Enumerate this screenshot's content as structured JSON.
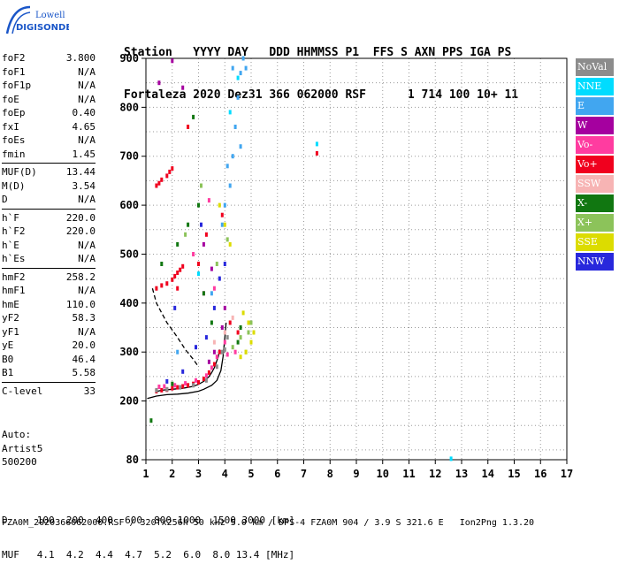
{
  "logo": {
    "line1": "Lowell",
    "line2": "DIGISONDE",
    "accent": "#1a56c8"
  },
  "header": {
    "labels": "Station   YYYY DAY   DDD HHMMSS P1  FFS S AXN PPS IGA PS",
    "values": "Fortaleza 2020 Dez31 366 062000 RSF      1 714 100 10+ 11"
  },
  "params": [
    [
      {
        "name": "foF2",
        "value": "3.800"
      },
      {
        "name": "foF1",
        "value": "N/A"
      },
      {
        "name": "foF1p",
        "value": "N/A"
      },
      {
        "name": "foE",
        "value": "N/A"
      },
      {
        "name": "foEp",
        "value": "0.40"
      },
      {
        "name": "fxI",
        "value": "4.65"
      },
      {
        "name": "foEs",
        "value": "N/A"
      },
      {
        "name": "fmin",
        "value": "1.45"
      }
    ],
    [
      {
        "name": "MUF(D)",
        "value": "13.44"
      },
      {
        "name": "M(D)",
        "value": "3.54"
      },
      {
        "name": "D",
        "value": "N/A"
      }
    ],
    [
      {
        "name": "h`F",
        "value": "220.0"
      },
      {
        "name": "h`F2",
        "value": "220.0"
      },
      {
        "name": "h`E",
        "value": "N/A"
      },
      {
        "name": "h`Es",
        "value": "N/A"
      }
    ],
    [
      {
        "name": "hmF2",
        "value": "258.2"
      },
      {
        "name": "hmF1",
        "value": "N/A"
      },
      {
        "name": "hmE",
        "value": "110.0"
      },
      {
        "name": "yF2",
        "value": "58.3"
      },
      {
        "name": "yF1",
        "value": "N/A"
      },
      {
        "name": "yE",
        "value": "20.0"
      },
      {
        "name": "B0",
        "value": "46.4"
      },
      {
        "name": "B1",
        "value": "5.58"
      }
    ],
    [
      {
        "name": "C-level",
        "value": "33"
      }
    ]
  ],
  "auto": {
    "line1": "Auto:",
    "line2": "Artist5",
    "line3": "500200"
  },
  "legend": [
    {
      "label": "NoVal",
      "color": "#8c8c8c"
    },
    {
      "label": "NNE",
      "color": "#00dcff"
    },
    {
      "label": "E",
      "color": "#41a6f0"
    },
    {
      "label": "W",
      "color": "#a5009f"
    },
    {
      "label": "Vo-",
      "color": "#ff3ca0"
    },
    {
      "label": "Vo+",
      "color": "#f0001e"
    },
    {
      "label": "SSW",
      "color": "#f7b4b4"
    },
    {
      "label": "X-",
      "color": "#117711"
    },
    {
      "label": "X+",
      "color": "#8cc35a"
    },
    {
      "label": "SSE",
      "color": "#dcdc00"
    },
    {
      "label": "NNW",
      "color": "#2828dc"
    }
  ],
  "footer": {
    "line1": "D     100  200  400  600  800 1000  1500 3000 [km]",
    "line2": "MUF   4.1  4.2  4.4  4.7  5.2  6.0  8.0 13.4 [MHz]",
    "file": "FZA0M_2020366062000.RSF / 320fx256h 50 kHz 5.0 km / DPS-4 FZA0M 904 / 3.9 S 321.6 E   Ion2Png 1.3.20"
  },
  "chart_data": {
    "type": "scatter",
    "title": "",
    "xlabel": "",
    "ylabel": "",
    "xlim": [
      1,
      17
    ],
    "ylim": [
      80,
      900
    ],
    "x_ticks": [
      1,
      2,
      3,
      4,
      5,
      6,
      7,
      8,
      9,
      10,
      11,
      12,
      13,
      14,
      15,
      16,
      17
    ],
    "y_ticks": [
      80,
      200,
      300,
      400,
      500,
      600,
      700,
      800,
      900
    ],
    "grid": "dotted",
    "legend_position": "right",
    "series": [
      {
        "name": "Vo+",
        "color": "#f0001e",
        "points": [
          [
            1.4,
            220
          ],
          [
            1.6,
            222
          ],
          [
            1.8,
            223
          ],
          [
            2.0,
            226
          ],
          [
            2.2,
            228
          ],
          [
            2.4,
            230
          ],
          [
            2.6,
            232
          ],
          [
            2.8,
            235
          ],
          [
            3.0,
            238
          ],
          [
            3.2,
            245
          ],
          [
            3.4,
            258
          ],
          [
            3.6,
            275
          ],
          [
            3.8,
            300
          ],
          [
            1.4,
            430
          ],
          [
            1.6,
            436
          ],
          [
            1.8,
            440
          ],
          [
            2.0,
            448
          ],
          [
            2.1,
            455
          ],
          [
            2.2,
            462
          ],
          [
            2.3,
            468
          ],
          [
            2.4,
            475
          ],
          [
            2.2,
            430
          ],
          [
            1.4,
            640
          ],
          [
            1.5,
            645
          ],
          [
            1.6,
            652
          ],
          [
            1.8,
            660
          ],
          [
            1.9,
            668
          ],
          [
            2.0,
            675
          ],
          [
            3.0,
            480
          ],
          [
            3.3,
            540
          ],
          [
            3.9,
            580
          ],
          [
            4.2,
            360
          ],
          [
            4.5,
            340
          ],
          [
            7.5,
            706
          ],
          [
            2.6,
            760
          ]
        ]
      },
      {
        "name": "Vo-",
        "color": "#ff3ca0",
        "points": [
          [
            1.5,
            229
          ],
          [
            1.7,
            230
          ],
          [
            2.1,
            232
          ],
          [
            2.5,
            236
          ],
          [
            2.9,
            242
          ],
          [
            3.3,
            252
          ],
          [
            3.5,
            268
          ],
          [
            3.7,
            290
          ],
          [
            4.0,
            320
          ],
          [
            3.2,
            420
          ],
          [
            3.6,
            430
          ],
          [
            2.8,
            500
          ],
          [
            3.4,
            610
          ],
          [
            4.1,
            295
          ],
          [
            4.4,
            300
          ]
        ]
      },
      {
        "name": "E",
        "color": "#41a6f0",
        "points": [
          [
            4.0,
            600
          ],
          [
            4.2,
            640
          ],
          [
            4.3,
            700
          ],
          [
            4.4,
            760
          ],
          [
            4.5,
            820
          ],
          [
            4.6,
            870
          ],
          [
            4.7,
            900
          ],
          [
            4.1,
            680
          ],
          [
            3.9,
            560
          ],
          [
            4.8,
            880
          ],
          [
            3.5,
            420
          ],
          [
            2.2,
            300
          ],
          [
            4.3,
            880
          ],
          [
            4.6,
            720
          ]
        ]
      },
      {
        "name": "NNE",
        "color": "#00dcff",
        "points": [
          [
            7.5,
            725
          ],
          [
            12.6,
            82
          ],
          [
            4.2,
            790
          ],
          [
            4.5,
            860
          ],
          [
            3.0,
            460
          ]
        ]
      },
      {
        "name": "W",
        "color": "#a5009f",
        "points": [
          [
            2.0,
            895
          ],
          [
            1.5,
            850
          ],
          [
            3.4,
            280
          ],
          [
            3.6,
            300
          ],
          [
            3.9,
            350
          ],
          [
            4.0,
            390
          ],
          [
            3.2,
            520
          ],
          [
            3.5,
            470
          ],
          [
            2.4,
            840
          ]
        ]
      },
      {
        "name": "X-",
        "color": "#117711",
        "points": [
          [
            1.2,
            160
          ],
          [
            1.6,
            480
          ],
          [
            2.2,
            520
          ],
          [
            2.6,
            560
          ],
          [
            3.0,
            600
          ],
          [
            3.2,
            420
          ],
          [
            3.5,
            360
          ],
          [
            4.5,
            320
          ],
          [
            4.6,
            350
          ],
          [
            2.8,
            780
          ],
          [
            2.0,
            235
          ]
        ]
      },
      {
        "name": "X+",
        "color": "#8cc35a",
        "points": [
          [
            4.3,
            310
          ],
          [
            4.6,
            330
          ],
          [
            4.8,
            300
          ],
          [
            4.9,
            340
          ],
          [
            5.0,
            360
          ],
          [
            3.7,
            480
          ],
          [
            4.1,
            530
          ],
          [
            2.5,
            540
          ],
          [
            3.1,
            640
          ]
        ]
      },
      {
        "name": "SSE",
        "color": "#dcdc00",
        "points": [
          [
            4.6,
            290
          ],
          [
            4.8,
            300
          ],
          [
            5.0,
            320
          ],
          [
            5.1,
            340
          ],
          [
            4.9,
            360
          ],
          [
            4.2,
            520
          ],
          [
            4.0,
            560
          ],
          [
            3.8,
            600
          ],
          [
            4.7,
            380
          ]
        ]
      },
      {
        "name": "NNW",
        "color": "#2828dc",
        "points": [
          [
            1.8,
            240
          ],
          [
            2.4,
            260
          ],
          [
            2.9,
            310
          ],
          [
            3.3,
            330
          ],
          [
            3.6,
            390
          ],
          [
            3.1,
            560
          ],
          [
            3.8,
            450
          ],
          [
            4.0,
            480
          ],
          [
            2.1,
            390
          ]
        ]
      },
      {
        "name": "SSW",
        "color": "#f7b4b4",
        "points": [
          [
            3.6,
            320
          ],
          [
            4.0,
            340
          ],
          [
            4.3,
            370
          ]
        ]
      },
      {
        "name": "NoVal",
        "color": "#8c8c8c",
        "points": [
          [
            1.4,
            222
          ],
          [
            1.8,
            224
          ],
          [
            2.3,
            228
          ],
          [
            2.8,
            232
          ],
          [
            3.3,
            242
          ],
          [
            3.7,
            270
          ],
          [
            4.0,
            305
          ],
          [
            3.9,
            300
          ],
          [
            4.1,
            330
          ]
        ]
      }
    ],
    "curves": [
      {
        "color": "#000000",
        "style": "solid",
        "points": [
          [
            1.05,
            205
          ],
          [
            1.4,
            210
          ],
          [
            1.8,
            213
          ],
          [
            2.2,
            214
          ],
          [
            2.6,
            216
          ],
          [
            3.0,
            220
          ],
          [
            3.2,
            224
          ],
          [
            3.5,
            232
          ],
          [
            3.7,
            242
          ],
          [
            3.85,
            262
          ],
          [
            3.93,
            290
          ],
          [
            4.0,
            330
          ],
          [
            4.05,
            360
          ]
        ]
      },
      {
        "color": "#000000",
        "style": "solid",
        "points": [
          [
            1.45,
            220
          ],
          [
            1.6,
            222
          ],
          [
            2.0,
            224
          ],
          [
            2.4,
            226
          ],
          [
            2.8,
            230
          ],
          [
            3.0,
            234
          ],
          [
            3.2,
            240
          ],
          [
            3.4,
            250
          ],
          [
            3.5,
            258
          ],
          [
            3.6,
            268
          ],
          [
            3.75,
            290
          ],
          [
            3.8,
            305
          ]
        ]
      },
      {
        "color": "#000000",
        "style": "dashed",
        "points": [
          [
            1.25,
            430
          ],
          [
            1.4,
            400
          ],
          [
            1.6,
            380
          ],
          [
            1.8,
            360
          ],
          [
            2.0,
            345
          ],
          [
            2.2,
            330
          ],
          [
            2.5,
            305
          ],
          [
            2.8,
            285
          ],
          [
            3.0,
            270
          ]
        ]
      }
    ]
  }
}
